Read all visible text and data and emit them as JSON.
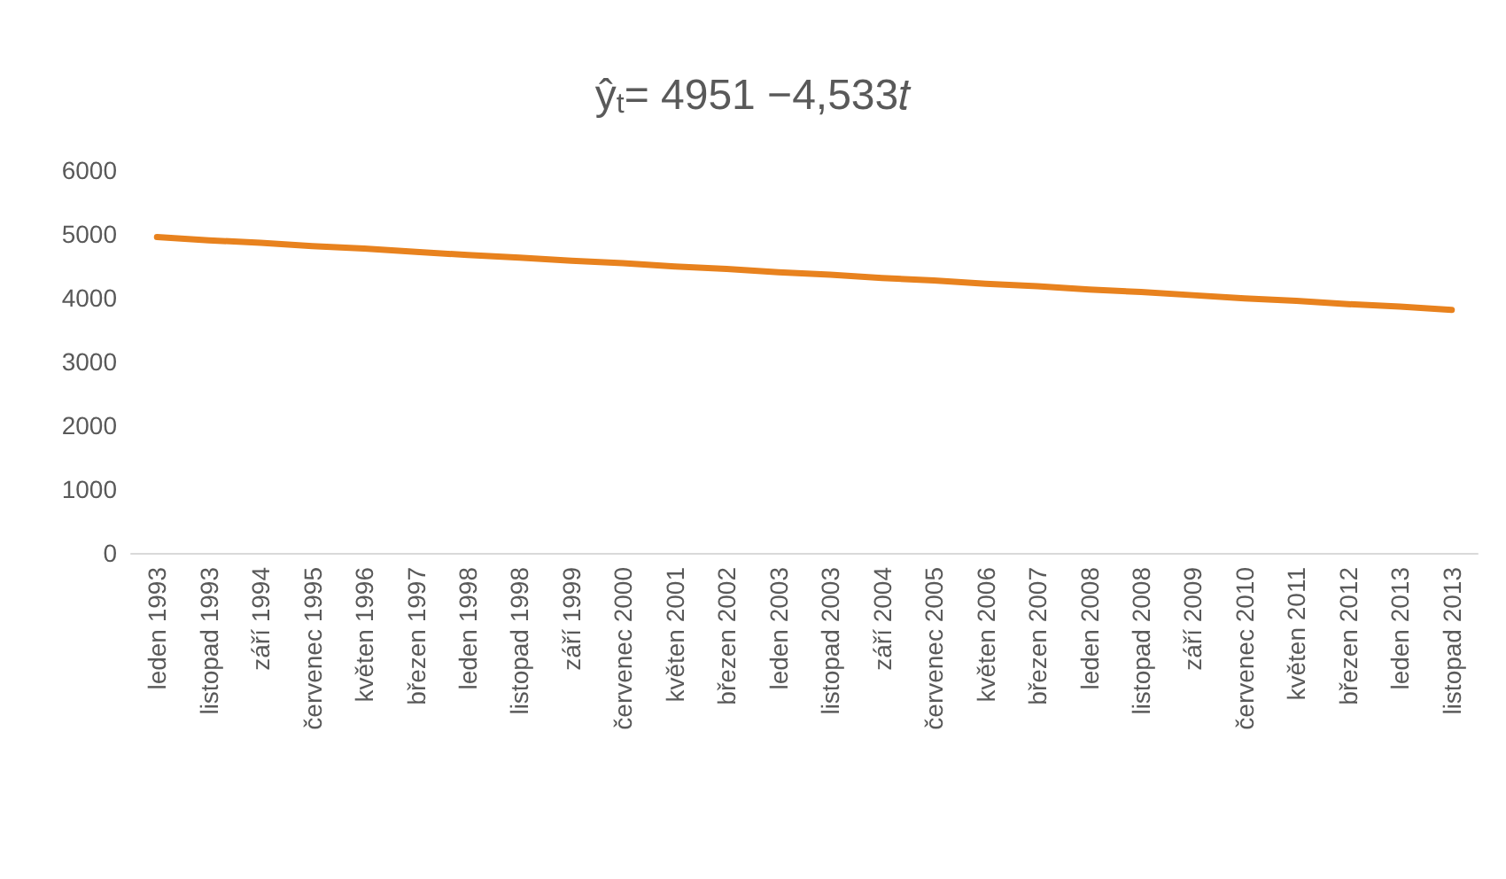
{
  "chart_data": {
    "type": "line",
    "title": "ŷ$_{t}$= 4951 −4,533𝑡",
    "categories": [
      "leden 1993",
      "listopad 1993",
      "září 1994",
      "červenec 1995",
      "květen 1996",
      "březen 1997",
      "leden 1998",
      "listopad 1998",
      "září 1999",
      "červenec 2000",
      "květen 2001",
      "březen 2002",
      "leden 2003",
      "listopad 2003",
      "září 2004",
      "červenec 2005",
      "květen 2006",
      "březen 2007",
      "leden 2008",
      "listopad 2008",
      "září 2009",
      "červenec 2010",
      "květen 2011",
      "březen 2012",
      "leden 2013",
      "listopad 2013"
    ],
    "series": [
      {
        "color": "#e8821e",
        "values": [
          4950,
          4900,
          4860,
          4810,
          4770,
          4720,
          4670,
          4630,
          4580,
          4540,
          4490,
          4450,
          4400,
          4360,
          4310,
          4270,
          4220,
          4180,
          4130,
          4090,
          4040,
          3990,
          3950,
          3900,
          3860,
          3810
        ]
      }
    ],
    "ylim": [
      0,
      6000
    ],
    "yticks": [
      0,
      1000,
      2000,
      3000,
      4000,
      5000,
      6000
    ],
    "grid": false,
    "marker": "none",
    "line_style": "solid"
  }
}
